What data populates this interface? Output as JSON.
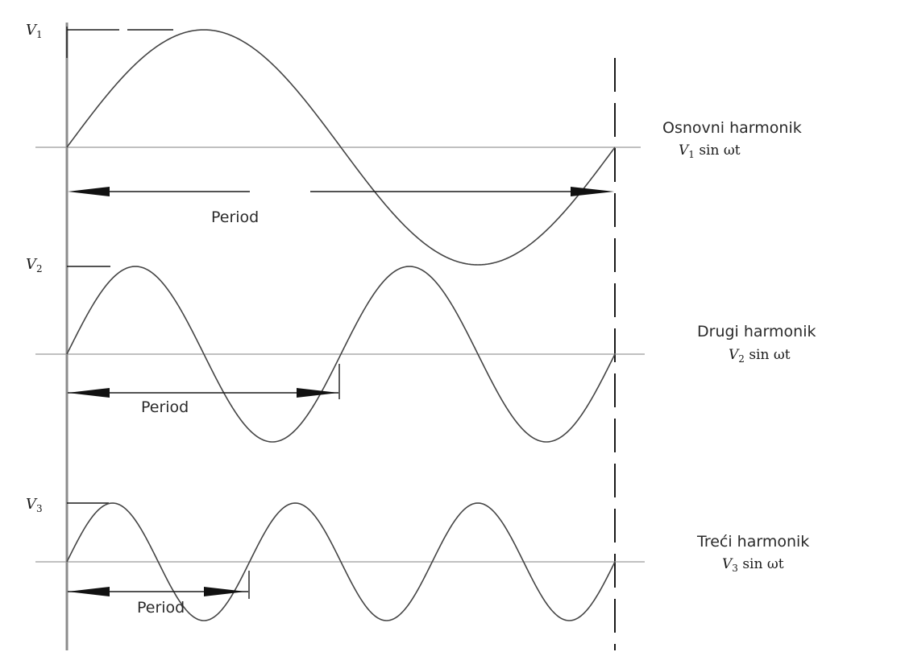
{
  "harmonics": [
    {
      "amplitude_symbol": "V",
      "amplitude_index": "1",
      "name": "Osnovni harmonik",
      "formula_symbol": "V",
      "formula_index": "1",
      "formula_rest": " sin ωt",
      "period_label": "Period",
      "cycles": 1
    },
    {
      "amplitude_symbol": "V",
      "amplitude_index": "2",
      "name": "Drugi harmonik",
      "formula_symbol": "V",
      "formula_index": "2",
      "formula_rest": " sin ωt",
      "period_label": "Period",
      "cycles": 2
    },
    {
      "amplitude_symbol": "V",
      "amplitude_index": "3",
      "name": "Treći harmonik",
      "formula_symbol": "V",
      "formula_index": "3",
      "formula_rest": " sin ωt",
      "period_label": "Period",
      "cycles": 3
    }
  ]
}
